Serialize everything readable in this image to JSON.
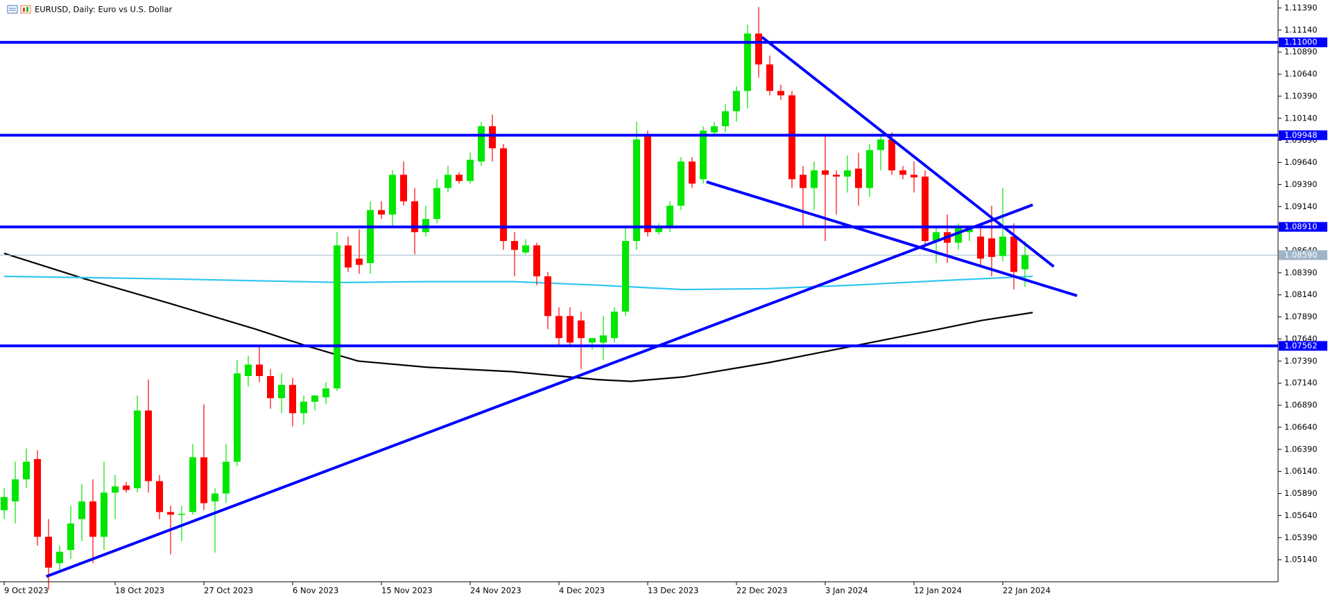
{
  "chart_data": {
    "type": "candlestick",
    "title": "EURUSD, Daily:  Euro vs U.S. Dollar",
    "up_color": "#00e600",
    "down_color": "#ff0000",
    "open": [
      1.057,
      1.058,
      1.0605,
      1.0628,
      1.054,
      1.051,
      1.0525,
      1.056,
      1.058,
      1.054,
      1.059,
      1.0598,
      1.0595,
      1.0683,
      1.0603,
      1.0568,
      1.0566,
      1.0568,
      1.063,
      1.058,
      1.0589,
      1.0625,
      1.0722,
      1.0735,
      1.0722,
      1.0697,
      1.0712,
      1.068,
      1.0693,
      1.0698,
      1.0708,
      1.087,
      1.0855,
      1.085,
      1.091,
      1.0905,
      1.095,
      1.092,
      1.0885,
      1.09,
      1.0935,
      1.095,
      1.0943,
      1.0965,
      1.1005,
      1.098,
      1.0875,
      1.0862,
      1.087,
      1.0835,
      1.079,
      1.079,
      1.0785,
      1.076,
      1.076,
      1.0765,
      1.0795,
      1.0875,
      1.0995,
      1.0885,
      1.089,
      1.0915,
      1.0965,
      1.0945,
      1.0998,
      1.1005,
      1.1022,
      1.1045,
      1.111,
      1.1075,
      1.1045,
      1.104,
      1.095,
      1.0935,
      1.0955,
      1.095,
      1.0948,
      1.0957,
      1.0935,
      1.0978,
      1.099,
      1.0955,
      1.095,
      1.0948,
      1.0875,
      1.0885,
      1.0873,
      1.0885,
      1.088,
      1.0878,
      1.0858,
      1.088,
      1.0843
    ],
    "high": [
      1.0595,
      1.0625,
      1.064,
      1.0638,
      1.056,
      1.053,
      1.0575,
      1.06,
      1.0605,
      1.0625,
      1.061,
      1.0602,
      1.07,
      1.0718,
      1.061,
      1.0575,
      1.0575,
      1.0645,
      1.069,
      1.0595,
      1.0645,
      1.074,
      1.0745,
      1.0757,
      1.073,
      1.0725,
      1.072,
      1.07,
      1.07,
      1.0715,
      1.0885,
      1.088,
      1.0888,
      1.092,
      1.092,
      1.0955,
      1.0965,
      1.0935,
      1.0915,
      1.0945,
      1.096,
      1.0953,
      1.0975,
      1.101,
      1.1018,
      1.0985,
      1.0885,
      1.0877,
      1.0873,
      1.084,
      1.08,
      1.08,
      1.0795,
      1.0765,
      1.079,
      1.08,
      1.089,
      1.101,
      1.1,
      1.0895,
      1.092,
      1.097,
      1.097,
      1.1005,
      1.101,
      1.103,
      1.105,
      1.112,
      1.114,
      1.1085,
      1.1052,
      1.1045,
      1.096,
      1.0965,
      1.0995,
      1.0955,
      1.0972,
      1.0975,
      1.0985,
      1.0995,
      1.0998,
      1.096,
      1.0965,
      1.0955,
      1.089,
      1.0905,
      1.0895,
      1.089,
      1.0895,
      1.0915,
      1.0935,
      1.0895,
      1.0875
    ],
    "low": [
      1.056,
      1.0555,
      1.0595,
      1.053,
      1.048,
      1.05,
      1.0515,
      1.0535,
      1.051,
      1.0525,
      1.056,
      1.059,
      1.059,
      1.059,
      1.056,
      1.052,
      1.0535,
      1.0565,
      1.057,
      1.0522,
      1.0578,
      1.062,
      1.071,
      1.0715,
      1.0685,
      1.068,
      1.0665,
      1.0667,
      1.0683,
      1.069,
      1.0705,
      1.084,
      1.0838,
      1.0838,
      1.09,
      1.089,
      1.0915,
      1.086,
      1.088,
      1.0895,
      1.093,
      1.094,
      1.094,
      1.096,
      1.0965,
      1.0865,
      1.0835,
      1.086,
      1.0825,
      1.0775,
      1.0755,
      1.0755,
      1.073,
      1.0752,
      1.074,
      1.076,
      1.079,
      1.0865,
      1.088,
      1.0882,
      1.0885,
      1.091,
      1.0935,
      1.094,
      1.0995,
      1.0998,
      1.101,
      1.1025,
      1.106,
      1.104,
      1.1035,
      1.0935,
      1.089,
      1.091,
      1.0875,
      1.0905,
      1.093,
      1.0915,
      1.0925,
      1.0955,
      1.095,
      1.0945,
      1.093,
      1.087,
      1.085,
      1.085,
      1.0865,
      1.0875,
      1.0845,
      1.0835,
      1.0852,
      1.082,
      1.0823
    ],
    "close": [
      1.0585,
      1.0605,
      1.0625,
      1.054,
      1.0505,
      1.0523,
      1.0555,
      1.058,
      1.054,
      1.059,
      1.0597,
      1.0593,
      1.0683,
      1.0603,
      1.0568,
      1.0565,
      1.0566,
      1.063,
      1.0578,
      1.0589,
      1.0625,
      1.0725,
      1.0735,
      1.0722,
      1.0697,
      1.0712,
      1.068,
      1.0693,
      1.07,
      1.0708,
      1.087,
      1.0845,
      1.0848,
      1.091,
      1.0905,
      1.095,
      1.092,
      1.0885,
      1.09,
      1.0935,
      1.095,
      1.0943,
      1.0967,
      1.1005,
      1.098,
      1.0875,
      1.0865,
      1.087,
      1.0835,
      1.079,
      1.0765,
      1.076,
      1.0765,
      1.0765,
      1.0768,
      1.0795,
      1.0875,
      1.099,
      1.0885,
      1.089,
      1.0915,
      1.0965,
      1.094,
      1.1,
      1.1005,
      1.1022,
      1.1045,
      1.111,
      1.1075,
      1.1045,
      1.104,
      1.0945,
      1.0935,
      1.0955,
      1.095,
      1.0948,
      1.0955,
      1.0935,
      1.0978,
      1.099,
      1.0955,
      1.095,
      1.0947,
      1.0875,
      1.0885,
      1.0873,
      1.089,
      1.0888,
      1.0855,
      1.0857,
      1.088,
      1.084,
      1.0859
    ],
    "xticks": [
      {
        "value": 0,
        "label": "9 Oct 2023"
      },
      {
        "value": 10,
        "label": "18 Oct 2023"
      },
      {
        "value": 18,
        "label": "27 Oct 2023"
      },
      {
        "value": 26,
        "label": "6 Nov 2023"
      },
      {
        "value": 34,
        "label": "15 Nov 2023"
      },
      {
        "value": 42,
        "label": "24 Nov 2023"
      },
      {
        "value": 50,
        "label": "4 Dec 2023"
      },
      {
        "value": 58,
        "label": "13 Dec 2023"
      },
      {
        "value": 66,
        "label": "22 Dec 2023"
      },
      {
        "value": 74,
        "label": "3 Jan 2024"
      },
      {
        "value": 82,
        "label": "12 Jan 2024"
      },
      {
        "value": 90,
        "label": "22 Jan 2024"
      }
    ],
    "ylim": [
      1.0489,
      1.1148
    ],
    "yticks": [
      {
        "value": 1.1139,
        "label": "1.11390"
      },
      {
        "value": 1.1114,
        "label": "1.11140"
      },
      {
        "value": 1.1089,
        "label": "1.10890"
      },
      {
        "value": 1.1064,
        "label": "1.10640"
      },
      {
        "value": 1.1039,
        "label": "1.10390"
      },
      {
        "value": 1.1014,
        "label": "1.10140"
      },
      {
        "value": 1.0989,
        "label": "1.09890"
      },
      {
        "value": 1.0964,
        "label": "1.09640"
      },
      {
        "value": 1.0939,
        "label": "1.09390"
      },
      {
        "value": 1.0914,
        "label": "1.09140"
      },
      {
        "value": 1.0889,
        "label": "1.08890"
      },
      {
        "value": 1.0864,
        "label": "1.08640"
      },
      {
        "value": 1.0839,
        "label": "1.08390"
      },
      {
        "value": 1.0814,
        "label": "1.08140"
      },
      {
        "value": 1.0789,
        "label": "1.07890"
      },
      {
        "value": 1.0764,
        "label": "1.07640"
      },
      {
        "value": 1.0739,
        "label": "1.07390"
      },
      {
        "value": 1.0714,
        "label": "1.07140"
      },
      {
        "value": 1.0689,
        "label": "1.06890"
      },
      {
        "value": 1.0664,
        "label": "1.06640"
      },
      {
        "value": 1.0639,
        "label": "1.06390"
      },
      {
        "value": 1.0614,
        "label": "1.06140"
      },
      {
        "value": 1.0589,
        "label": "1.05890"
      },
      {
        "value": 1.0564,
        "label": "1.05640"
      },
      {
        "value": 1.0539,
        "label": "1.05390"
      },
      {
        "value": 1.0514,
        "label": "1.05140"
      }
    ],
    "levels": [
      {
        "value": 1.11,
        "label": "1.11000",
        "color": "#0000ff"
      },
      {
        "value": 1.09948,
        "label": "1.09948",
        "color": "#0000ff"
      },
      {
        "value": 1.0891,
        "label": "1.08910",
        "color": "#0000ff"
      },
      {
        "value": 1.07562,
        "label": "1.07562",
        "color": "#0000ff"
      }
    ],
    "current_price": {
      "value": 1.0859,
      "label": "1.08590",
      "color": "#9fb4c8"
    },
    "trendlines": [
      {
        "color": "#0000ff",
        "x": [
          3.8,
          92.7
        ],
        "values": [
          1.0495,
          1.0916
        ]
      },
      {
        "color": "#0000ff",
        "x": [
          68.3,
          94.6
        ],
        "values": [
          1.1106,
          1.0846
        ]
      },
      {
        "color": "#0000ff",
        "x": [
          63.3,
          96.7
        ],
        "values": [
          1.0942,
          1.0813
        ]
      }
    ],
    "moving_averages": [
      {
        "color": "#000000",
        "x": [
          0,
          7.3,
          15,
          22.7,
          27.3,
          31.9,
          38.1,
          45.8,
          53.5,
          56.5,
          61.2,
          68.8,
          76.5,
          84.2,
          88.1,
          92.7
        ],
        "values": [
          1.0861,
          1.0832,
          1.0804,
          1.0775,
          1.0756,
          1.0739,
          1.0732,
          1.0727,
          1.0718,
          1.0716,
          1.0721,
          1.0737,
          1.0756,
          1.0775,
          1.0785,
          1.0794
        ]
      },
      {
        "color": "#33c6f0",
        "x": [
          0,
          15,
          30.4,
          38.1,
          45.8,
          53.5,
          61.2,
          68.8,
          76.5,
          84.2,
          92.7
        ],
        "values": [
          1.0835,
          1.0832,
          1.0828,
          1.0829,
          1.0829,
          1.0825,
          1.082,
          1.0821,
          1.0825,
          1.083,
          1.0835
        ]
      }
    ]
  }
}
